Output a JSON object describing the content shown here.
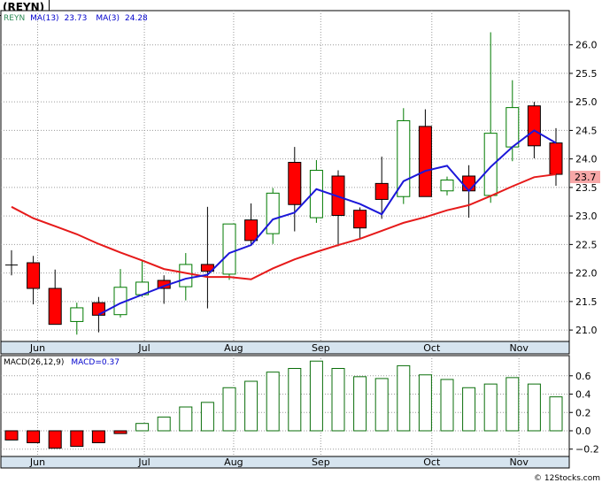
{
  "title": "(REYN)",
  "footer": "© 12Stocks.com",
  "colors": {
    "bull": "#007a00",
    "bear": "#ff0000",
    "ma13": "#e61a1a",
    "ma3": "#1b17d9",
    "macd": "#0a6e0a",
    "label_blue": "#0000cc",
    "bg": "#ffffff"
  },
  "chart_data": [
    {
      "type": "candlestick",
      "ticker": "REYN",
      "legend": [
        {
          "text": "REYN",
          "color": "#2e8b57"
        },
        {
          "text": "MA(13)",
          "color": "#0000cc"
        },
        {
          "text": "23.73",
          "color": "#0000cc"
        },
        {
          "text": "MA(3)",
          "color": "#0000cc"
        },
        {
          "text": "24.28",
          "color": "#0000cc"
        }
      ],
      "last_price_label": "23.7",
      "ylim": [
        20.8,
        26.6
      ],
      "yticks": [
        21.0,
        21.5,
        22.0,
        22.5,
        23.0,
        23.5,
        24.0,
        24.5,
        25.0,
        25.5,
        26.0
      ],
      "ytick_labels": [
        "21.0",
        "21.5",
        "22.0",
        "22.5",
        "23.0",
        "23.5",
        "24.0",
        "24.5",
        "25.0",
        "25.5",
        "26.0"
      ],
      "x_labels": [
        {
          "label": "Jun",
          "index": 1.2
        },
        {
          "label": "Jul",
          "index": 6.1
        },
        {
          "label": "Aug",
          "index": 10.2
        },
        {
          "label": "Sep",
          "index": 14.2
        },
        {
          "label": "Oct",
          "index": 19.3
        },
        {
          "label": "Nov",
          "index": 23.3
        }
      ],
      "candles": [
        {
          "o": 22.14,
          "h": 22.4,
          "l": 21.96,
          "c": 22.14,
          "dir": "flat"
        },
        {
          "o": 22.18,
          "h": 22.3,
          "l": 21.45,
          "c": 21.73,
          "dir": "down"
        },
        {
          "o": 21.73,
          "h": 22.06,
          "l": 21.1,
          "c": 21.1,
          "dir": "down"
        },
        {
          "o": 21.15,
          "h": 21.48,
          "l": 20.92,
          "c": 21.39,
          "dir": "up"
        },
        {
          "o": 21.48,
          "h": 21.58,
          "l": 20.96,
          "c": 21.26,
          "dir": "down"
        },
        {
          "o": 21.27,
          "h": 22.07,
          "l": 21.22,
          "c": 21.75,
          "dir": "up"
        },
        {
          "o": 21.62,
          "h": 22.22,
          "l": 21.58,
          "c": 21.84,
          "dir": "up"
        },
        {
          "o": 21.87,
          "h": 21.96,
          "l": 21.46,
          "c": 21.73,
          "dir": "down"
        },
        {
          "o": 21.76,
          "h": 22.35,
          "l": 21.52,
          "c": 22.15,
          "dir": "up"
        },
        {
          "o": 22.15,
          "h": 23.16,
          "l": 21.38,
          "c": 22.03,
          "dir": "down"
        },
        {
          "o": 21.98,
          "h": 22.86,
          "l": 21.88,
          "c": 22.86,
          "dir": "up"
        },
        {
          "o": 22.93,
          "h": 23.22,
          "l": 22.51,
          "c": 22.57,
          "dir": "down"
        },
        {
          "o": 22.69,
          "h": 23.49,
          "l": 22.51,
          "c": 23.4,
          "dir": "up"
        },
        {
          "o": 23.94,
          "h": 24.21,
          "l": 22.73,
          "c": 23.2,
          "dir": "down"
        },
        {
          "o": 22.97,
          "h": 23.98,
          "l": 22.88,
          "c": 23.8,
          "dir": "up"
        },
        {
          "o": 23.7,
          "h": 23.8,
          "l": 22.47,
          "c": 23.01,
          "dir": "down"
        },
        {
          "o": 23.1,
          "h": 23.15,
          "l": 22.61,
          "c": 22.79,
          "dir": "down"
        },
        {
          "o": 23.57,
          "h": 24.04,
          "l": 22.95,
          "c": 23.29,
          "dir": "down"
        },
        {
          "o": 23.34,
          "h": 24.89,
          "l": 23.21,
          "c": 24.67,
          "dir": "up"
        },
        {
          "o": 24.57,
          "h": 24.87,
          "l": 23.34,
          "c": 23.34,
          "dir": "down"
        },
        {
          "o": 23.44,
          "h": 23.69,
          "l": 23.36,
          "c": 23.63,
          "dir": "up"
        },
        {
          "o": 23.7,
          "h": 23.89,
          "l": 22.97,
          "c": 23.44,
          "dir": "down"
        },
        {
          "o": 23.36,
          "h": 26.22,
          "l": 23.23,
          "c": 24.45,
          "dir": "up"
        },
        {
          "o": 24.21,
          "h": 25.38,
          "l": 23.96,
          "c": 24.9,
          "dir": "up"
        },
        {
          "o": 24.93,
          "h": 25.0,
          "l": 24.01,
          "c": 24.23,
          "dir": "down"
        },
        {
          "o": 24.28,
          "h": 24.54,
          "l": 23.53,
          "c": 23.73,
          "dir": "down"
        }
      ],
      "ma13": [
        {
          "i": 0,
          "v": 23.16
        },
        {
          "i": 1,
          "v": 22.96
        },
        {
          "i": 2,
          "v": 22.82
        },
        {
          "i": 3,
          "v": 22.68
        },
        {
          "i": 4,
          "v": 22.51
        },
        {
          "i": 5,
          "v": 22.36
        },
        {
          "i": 6,
          "v": 22.22
        },
        {
          "i": 7,
          "v": 22.07
        },
        {
          "i": 8,
          "v": 22.0
        },
        {
          "i": 9,
          "v": 21.93
        },
        {
          "i": 10,
          "v": 21.93
        },
        {
          "i": 11,
          "v": 21.89
        },
        {
          "i": 12,
          "v": 22.08
        },
        {
          "i": 13,
          "v": 22.24
        },
        {
          "i": 14,
          "v": 22.37
        },
        {
          "i": 15,
          "v": 22.49
        },
        {
          "i": 16,
          "v": 22.6
        },
        {
          "i": 17,
          "v": 22.74
        },
        {
          "i": 18,
          "v": 22.88
        },
        {
          "i": 19,
          "v": 22.98
        },
        {
          "i": 20,
          "v": 23.1
        },
        {
          "i": 21,
          "v": 23.19
        },
        {
          "i": 22,
          "v": 23.35
        },
        {
          "i": 23,
          "v": 23.52
        },
        {
          "i": 24,
          "v": 23.68
        },
        {
          "i": 25,
          "v": 23.73
        }
      ],
      "ma3": [
        {
          "i": 4,
          "v": 21.27
        },
        {
          "i": 5,
          "v": 21.47
        },
        {
          "i": 6,
          "v": 21.62
        },
        {
          "i": 7,
          "v": 21.77
        },
        {
          "i": 8,
          "v": 21.9
        },
        {
          "i": 9,
          "v": 21.97
        },
        {
          "i": 10,
          "v": 22.35
        },
        {
          "i": 11,
          "v": 22.49
        },
        {
          "i": 12,
          "v": 22.94
        },
        {
          "i": 13,
          "v": 23.06
        },
        {
          "i": 14,
          "v": 23.47
        },
        {
          "i": 15,
          "v": 23.34
        },
        {
          "i": 16,
          "v": 23.21
        },
        {
          "i": 17,
          "v": 23.03
        },
        {
          "i": 18,
          "v": 23.61
        },
        {
          "i": 19,
          "v": 23.79
        },
        {
          "i": 20,
          "v": 23.88
        },
        {
          "i": 21,
          "v": 23.44
        },
        {
          "i": 22,
          "v": 23.86
        },
        {
          "i": 23,
          "v": 24.21
        },
        {
          "i": 24,
          "v": 24.5
        },
        {
          "i": 25,
          "v": 24.28
        }
      ]
    },
    {
      "type": "bar",
      "name": "MACD",
      "legend": [
        {
          "text": "MACD(26,12,9)",
          "color": "#000000"
        },
        {
          "text": "MACD=0.37",
          "color": "#0000cc"
        }
      ],
      "ylim": [
        -0.28,
        0.82
      ],
      "yticks": [
        -0.2,
        0.0,
        0.2,
        0.4,
        0.6
      ],
      "ytick_labels": [
        "−0.2",
        "0.0",
        "0.2",
        "0.4",
        "0.6"
      ],
      "x_labels": [
        "Jun",
        "Jul",
        "Aug",
        "Sep",
        "Oct",
        "Nov"
      ],
      "values": [
        -0.1,
        -0.13,
        -0.19,
        -0.17,
        -0.13,
        -0.03,
        0.08,
        0.15,
        0.26,
        0.31,
        0.47,
        0.54,
        0.64,
        0.68,
        0.76,
        0.68,
        0.59,
        0.57,
        0.71,
        0.61,
        0.56,
        0.47,
        0.51,
        0.58,
        0.51,
        0.37
      ]
    }
  ]
}
